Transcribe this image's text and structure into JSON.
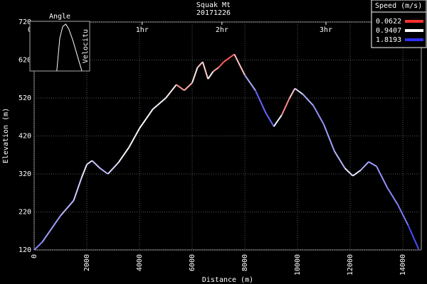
{
  "chart_data": {
    "type": "line",
    "title": "Squak Mt",
    "subtitle": "20171226",
    "x_label": "Distance (m)",
    "y_label": "Elevation (m)",
    "x": [
      0,
      300,
      1000,
      1500,
      1800,
      2000,
      2200,
      2500,
      2800,
      3200,
      3600,
      4000,
      4500,
      5000,
      5400,
      5700,
      6000,
      6200,
      6400,
      6600,
      6800,
      7000,
      7200,
      7600,
      8000,
      8400,
      8800,
      9100,
      9400,
      9700,
      9900,
      10200,
      10600,
      11000,
      11400,
      11800,
      12100,
      12400,
      12700,
      13000,
      13400,
      13800,
      14200,
      14600
    ],
    "values": [
      120,
      140,
      210,
      250,
      310,
      345,
      355,
      335,
      320,
      350,
      390,
      440,
      490,
      520,
      555,
      540,
      560,
      600,
      615,
      570,
      590,
      600,
      615,
      635,
      580,
      540,
      480,
      445,
      475,
      520,
      545,
      530,
      500,
      450,
      380,
      335,
      315,
      330,
      352,
      340,
      285,
      240,
      185,
      122
    ],
    "speed": [
      1.5,
      1.4,
      1.3,
      1.2,
      1.1,
      1.0,
      1.1,
      1.3,
      1.2,
      1.0,
      0.95,
      0.9,
      1.0,
      1.0,
      0.7,
      0.3,
      0.9,
      0.8,
      0.6,
      0.9,
      0.8,
      0.3,
      0.2,
      0.3,
      1.1,
      1.5,
      1.7,
      1.5,
      0.5,
      0.4,
      1.0,
      1.2,
      1.4,
      1.4,
      1.3,
      1.2,
      0.9,
      1.2,
      1.4,
      1.3,
      1.5,
      1.4,
      1.6,
      1.8
    ],
    "xlim": [
      0,
      14700
    ],
    "ylim": [
      120,
      720
    ],
    "xticks": [
      0,
      2000,
      4000,
      6000,
      8000,
      10000,
      12000,
      14000
    ],
    "yticks": [
      120,
      220,
      320,
      420,
      520,
      620,
      720
    ],
    "time_ticks": [
      {
        "value": 0,
        "label": "0hr"
      },
      {
        "value": 4100,
        "label": "1hr"
      },
      {
        "value": 7130,
        "label": "2hr"
      },
      {
        "value": 11080,
        "label": "3hr"
      }
    ],
    "grid": true,
    "legend": {
      "title": "Speed (m/s)",
      "position": "upper right",
      "entries": [
        {
          "value": 0.0622,
          "color": "#ff3030"
        },
        {
          "value": 0.9407,
          "color": "#ffffff"
        },
        {
          "value": 1.8193,
          "color": "#3030ff"
        }
      ]
    },
    "inset": {
      "title": "Angle",
      "y_label": "Velocitu",
      "xlim": [
        0,
        1
      ],
      "ylim": [
        0,
        1
      ],
      "x": [
        0.45,
        0.5,
        0.55,
        0.6,
        0.65,
        0.72,
        0.8,
        0.87
      ],
      "values": [
        0,
        0.7,
        0.95,
        1.0,
        0.9,
        0.65,
        0.3,
        0
      ]
    }
  }
}
